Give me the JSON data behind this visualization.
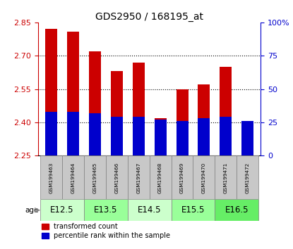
{
  "title": "GDS2950 / 168195_at",
  "samples": [
    "GSM199463",
    "GSM199464",
    "GSM199465",
    "GSM199466",
    "GSM199467",
    "GSM199468",
    "GSM199469",
    "GSM199470",
    "GSM199471",
    "GSM199472"
  ],
  "transformed_count": [
    2.82,
    2.81,
    2.72,
    2.63,
    2.67,
    2.42,
    2.55,
    2.57,
    2.65,
    2.37
  ],
  "pct_rank": [
    33,
    33,
    32,
    29,
    29,
    27,
    26,
    28,
    29,
    26
  ],
  "base": 2.25,
  "ylim_left": [
    2.25,
    2.85
  ],
  "ylim_right": [
    0,
    100
  ],
  "yticks_left": [
    2.25,
    2.4,
    2.55,
    2.7,
    2.85
  ],
  "yticks_right": [
    0,
    25,
    50,
    75,
    100
  ],
  "age_groups": [
    {
      "label": "E12.5",
      "start": 0,
      "end": 2,
      "color": "#ccffcc"
    },
    {
      "label": "E13.5",
      "start": 2,
      "end": 4,
      "color": "#99ff99"
    },
    {
      "label": "E14.5",
      "start": 4,
      "end": 6,
      "color": "#ccffcc"
    },
    {
      "label": "E15.5",
      "start": 6,
      "end": 8,
      "color": "#99ff99"
    },
    {
      "label": "E16.5",
      "start": 8,
      "end": 10,
      "color": "#66ee66"
    }
  ],
  "bar_color_red": "#cc0000",
  "bar_color_blue": "#0000cc",
  "bar_width": 0.55,
  "left_tick_color": "#cc0000",
  "right_tick_color": "#0000cc",
  "grid_vals": [
    2.4,
    2.55,
    2.7
  ],
  "sample_box_color": "#c8c8c8",
  "legend_items": [
    "transformed count",
    "percentile rank within the sample"
  ]
}
